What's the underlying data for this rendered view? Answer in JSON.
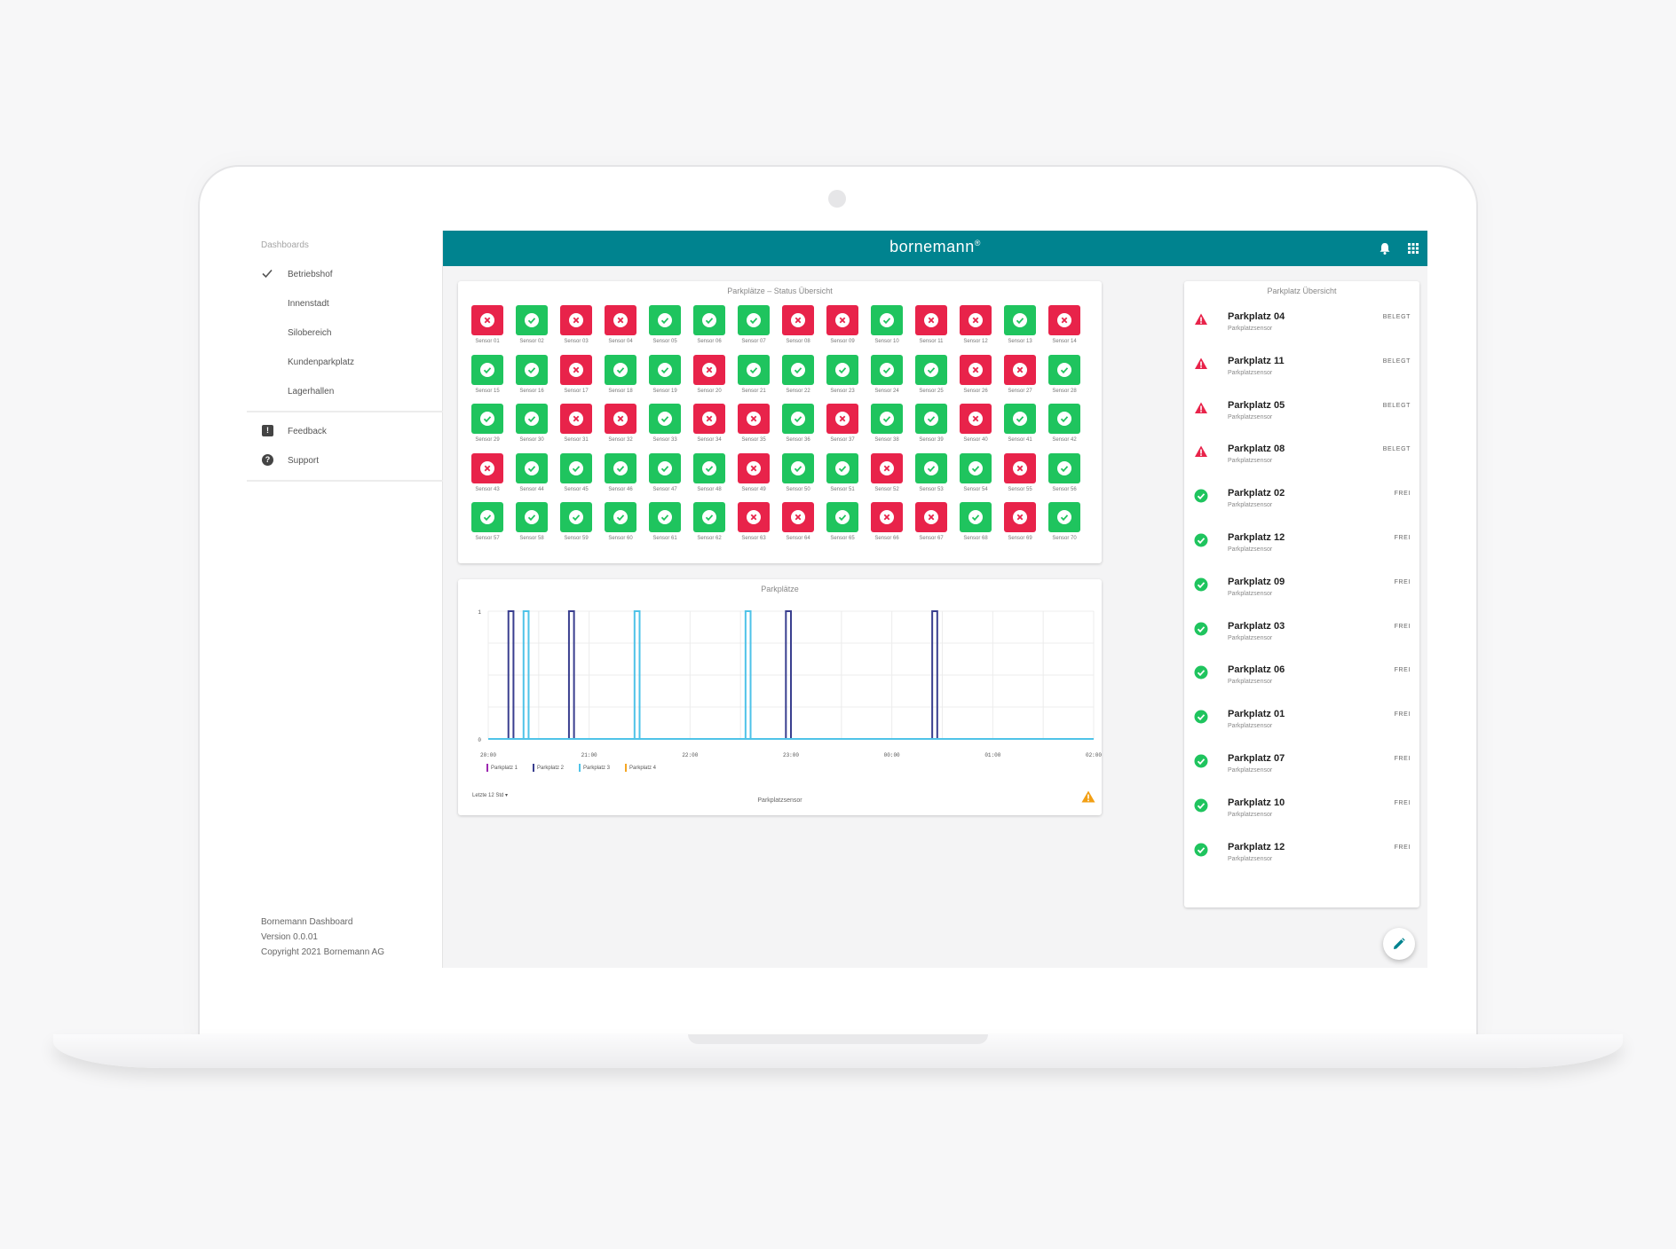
{
  "sidebar": {
    "heading": "Dashboards",
    "dashboards": [
      {
        "label": "Betriebshof",
        "selected": true
      },
      {
        "label": "Innenstadt",
        "selected": false
      },
      {
        "label": "Silobereich",
        "selected": false
      },
      {
        "label": "Kundenparkplatz",
        "selected": false
      },
      {
        "label": "Lagerhallen",
        "selected": false
      }
    ],
    "links": [
      {
        "label": "Feedback",
        "icon": "feedback-icon"
      },
      {
        "label": "Support",
        "icon": "help-icon"
      }
    ],
    "footer": {
      "app_name": "Bornemann Dashboard",
      "version": "Version 0.0.01",
      "copyright": "Copyright 2021 Bornemann AG"
    }
  },
  "header": {
    "logo": "bornemann",
    "logo_mark": "®",
    "icons": [
      "bell-icon",
      "apps-grid-icon",
      "account-icon"
    ],
    "bg_color": "#00838f"
  },
  "status_card": {
    "title": "Parkplätze – Status Übersicht",
    "ok_color": "#1fc45e",
    "bad_color": "#e8234a",
    "sensors": [
      {
        "label": "Sensor 01",
        "status": "bad"
      },
      {
        "label": "Sensor 02",
        "status": "ok"
      },
      {
        "label": "Sensor 03",
        "status": "bad"
      },
      {
        "label": "Sensor 04",
        "status": "bad"
      },
      {
        "label": "Sensor 05",
        "status": "ok"
      },
      {
        "label": "Sensor 06",
        "status": "ok"
      },
      {
        "label": "Sensor 07",
        "status": "ok"
      },
      {
        "label": "Sensor 08",
        "status": "bad"
      },
      {
        "label": "Sensor 09",
        "status": "bad"
      },
      {
        "label": "Sensor 10",
        "status": "ok"
      },
      {
        "label": "Sensor 11",
        "status": "bad"
      },
      {
        "label": "Sensor 12",
        "status": "bad"
      },
      {
        "label": "Sensor 13",
        "status": "ok"
      },
      {
        "label": "Sensor 14",
        "status": "bad"
      },
      {
        "label": "Sensor 15",
        "status": "ok"
      },
      {
        "label": "Sensor 16",
        "status": "ok"
      },
      {
        "label": "Sensor 17",
        "status": "bad"
      },
      {
        "label": "Sensor 18",
        "status": "ok"
      },
      {
        "label": "Sensor 19",
        "status": "ok"
      },
      {
        "label": "Sensor 20",
        "status": "bad"
      },
      {
        "label": "Sensor 21",
        "status": "ok"
      },
      {
        "label": "Sensor 22",
        "status": "ok"
      },
      {
        "label": "Sensor 23",
        "status": "ok"
      },
      {
        "label": "Sensor 24",
        "status": "ok"
      },
      {
        "label": "Sensor 25",
        "status": "ok"
      },
      {
        "label": "Sensor 26",
        "status": "bad"
      },
      {
        "label": "Sensor 27",
        "status": "bad"
      },
      {
        "label": "Sensor 28",
        "status": "ok"
      },
      {
        "label": "Sensor 29",
        "status": "ok"
      },
      {
        "label": "Sensor 30",
        "status": "ok"
      },
      {
        "label": "Sensor 31",
        "status": "bad"
      },
      {
        "label": "Sensor 32",
        "status": "bad"
      },
      {
        "label": "Sensor 33",
        "status": "ok"
      },
      {
        "label": "Sensor 34",
        "status": "bad"
      },
      {
        "label": "Sensor 35",
        "status": "bad"
      },
      {
        "label": "Sensor 36",
        "status": "ok"
      },
      {
        "label": "Sensor 37",
        "status": "bad"
      },
      {
        "label": "Sensor 38",
        "status": "ok"
      },
      {
        "label": "Sensor 39",
        "status": "ok"
      },
      {
        "label": "Sensor 40",
        "status": "bad"
      },
      {
        "label": "Sensor 41",
        "status": "ok"
      },
      {
        "label": "Sensor 42",
        "status": "ok"
      },
      {
        "label": "Sensor 43",
        "status": "bad"
      },
      {
        "label": "Sensor 44",
        "status": "ok"
      },
      {
        "label": "Sensor 45",
        "status": "ok"
      },
      {
        "label": "Sensor 46",
        "status": "ok"
      },
      {
        "label": "Sensor 47",
        "status": "ok"
      },
      {
        "label": "Sensor 48",
        "status": "ok"
      },
      {
        "label": "Sensor 49",
        "status": "bad"
      },
      {
        "label": "Sensor 50",
        "status": "ok"
      },
      {
        "label": "Sensor 51",
        "status": "ok"
      },
      {
        "label": "Sensor 52",
        "status": "bad"
      },
      {
        "label": "Sensor 53",
        "status": "ok"
      },
      {
        "label": "Sensor 54",
        "status": "ok"
      },
      {
        "label": "Sensor 55",
        "status": "bad"
      },
      {
        "label": "Sensor 56",
        "status": "ok"
      },
      {
        "label": "Sensor 57",
        "status": "ok"
      },
      {
        "label": "Sensor 58",
        "status": "ok"
      },
      {
        "label": "Sensor 59",
        "status": "ok"
      },
      {
        "label": "Sensor 60",
        "status": "ok"
      },
      {
        "label": "Sensor 61",
        "status": "ok"
      },
      {
        "label": "Sensor 62",
        "status": "ok"
      },
      {
        "label": "Sensor 63",
        "status": "bad"
      },
      {
        "label": "Sensor 64",
        "status": "bad"
      },
      {
        "label": "Sensor 65",
        "status": "ok"
      },
      {
        "label": "Sensor 66",
        "status": "bad"
      },
      {
        "label": "Sensor 67",
        "status": "bad"
      },
      {
        "label": "Sensor 68",
        "status": "ok"
      },
      {
        "label": "Sensor 69",
        "status": "bad"
      },
      {
        "label": "Sensor 70",
        "status": "ok"
      }
    ]
  },
  "chart_card": {
    "title": "Parkplätze",
    "range_select": "Letzte 12 Std",
    "footer": "Parkplatzsensor",
    "warning_icon": "warning-icon"
  },
  "chart_data": {
    "type": "line",
    "x_ticks": [
      "20:00",
      "21:00",
      "22:00",
      "23:00",
      "00:00",
      "01:00",
      "02:00"
    ],
    "y_ticks": [
      "0",
      "1"
    ],
    "ylim": [
      0,
      1
    ],
    "xlim_hours": [
      20.0,
      26.0
    ],
    "series": [
      {
        "name": "Parkplatz 1",
        "color": "#9c27b0",
        "pulses": []
      },
      {
        "name": "Parkplatz 2",
        "color": "#3a3f8f",
        "pulses": [
          [
            20.2,
            20.25
          ],
          [
            20.8,
            20.85
          ],
          [
            22.95,
            23.0
          ],
          [
            24.4,
            24.45
          ]
        ]
      },
      {
        "name": "Parkplatz 3",
        "color": "#4fc3e8",
        "pulses": [
          [
            20.35,
            20.4
          ],
          [
            21.45,
            21.5
          ],
          [
            22.55,
            22.6
          ]
        ]
      },
      {
        "name": "Parkplatz 4",
        "color": "#f5a623",
        "pulses": []
      }
    ],
    "grid": true
  },
  "overview_card": {
    "title": "Parkplatz Übersicht",
    "items": [
      {
        "name": "Parkplatz 04",
        "sub": "Parkplatzsensor",
        "status": "BELEGT",
        "icon": "warning-icon"
      },
      {
        "name": "Parkplatz 11",
        "sub": "Parkplatzsensor",
        "status": "BELEGT",
        "icon": "warning-icon"
      },
      {
        "name": "Parkplatz 05",
        "sub": "Parkplatzsensor",
        "status": "BELEGT",
        "icon": "warning-icon"
      },
      {
        "name": "Parkplatz 08",
        "sub": "Parkplatzsensor",
        "status": "BELEGT",
        "icon": "warning-icon"
      },
      {
        "name": "Parkplatz 02",
        "sub": "Parkplatzsensor",
        "status": "FREI",
        "icon": "check-circle-icon"
      },
      {
        "name": "Parkplatz 12",
        "sub": "Parkplatzsensor",
        "status": "FREI",
        "icon": "check-circle-icon"
      },
      {
        "name": "Parkplatz 09",
        "sub": "Parkplatzsensor",
        "status": "FREI",
        "icon": "check-circle-icon"
      },
      {
        "name": "Parkplatz 03",
        "sub": "Parkplatzsensor",
        "status": "FREI",
        "icon": "check-circle-icon"
      },
      {
        "name": "Parkplatz 06",
        "sub": "Parkplatzsensor",
        "status": "FREI",
        "icon": "check-circle-icon"
      },
      {
        "name": "Parkplatz 01",
        "sub": "Parkplatzsensor",
        "status": "FREI",
        "icon": "check-circle-icon"
      },
      {
        "name": "Parkplatz 07",
        "sub": "Parkplatzsensor",
        "status": "FREI",
        "icon": "check-circle-icon"
      },
      {
        "name": "Parkplatz 10",
        "sub": "Parkplatzsensor",
        "status": "FREI",
        "icon": "check-circle-icon"
      },
      {
        "name": "Parkplatz 12",
        "sub": "Parkplatzsensor",
        "status": "FREI",
        "icon": "check-circle-icon"
      }
    ]
  },
  "fab": {
    "icon": "edit-pencil-icon"
  }
}
